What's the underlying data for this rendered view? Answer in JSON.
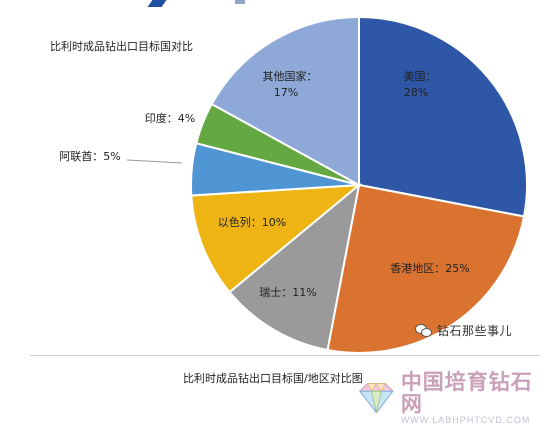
{
  "chart_data": {
    "type": "pie",
    "title": "比利时成品钻出口目标国对比",
    "slices": [
      {
        "label": "美国",
        "value_label": "28%",
        "value": 28,
        "color": "#2e57a7"
      },
      {
        "label": "香港地区",
        "value_label": "25%",
        "value": 25,
        "color": "#db7330"
      },
      {
        "label": "瑞士",
        "value_label": "11%",
        "value": 11,
        "color": "#9a9a9a"
      },
      {
        "label": "以色列",
        "value_label": "10%",
        "value": 10,
        "color": "#edb414"
      },
      {
        "label": "阿联酋",
        "value_label": "5%",
        "value": 5,
        "color": "#4f95d3"
      },
      {
        "label": "印度",
        "value_label": "4%",
        "value": 4,
        "color": "#63a840"
      },
      {
        "label": "其他国家",
        "value_label": "17%",
        "value": 17,
        "color": "#8ea8d8"
      }
    ]
  },
  "caption": "比利时成品钻出口目标国/地区对比图",
  "watermark": {
    "wechat_label": "钻石那些事儿",
    "brand_name": "中国培育钻石网",
    "brand_url": "WWW.LABHPHTCVD.COM"
  }
}
